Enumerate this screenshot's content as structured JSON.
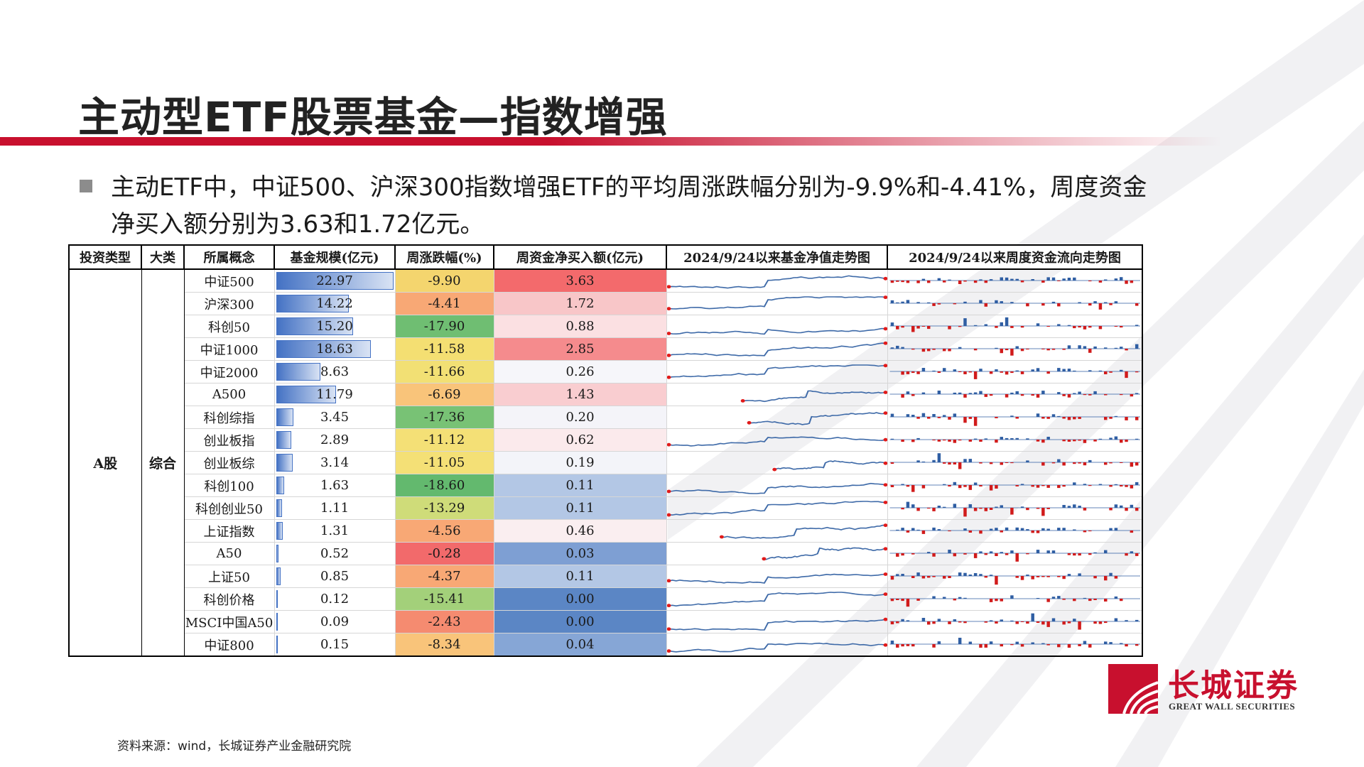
{
  "title": "主动型ETF股票基金—指数增强",
  "bullet": "主动ETF中，中证500、沪深300指数增强ETF的平均周涨跌幅分别为-9.9%和-4.41%，周度资金净买入额分别为3.63和1.72亿元。",
  "table": {
    "headers": [
      "投资类型",
      "大类",
      "所属概念",
      "基金规模(亿元)",
      "周涨跌幅(%)",
      "周资金净买入额(亿元)",
      "2024/9/24以来基金净值走势图",
      "2024/9/24以来周度资金流向走势图"
    ],
    "investment_type": "A股",
    "category": "综合",
    "rows": [
      {
        "concept": "中证500",
        "size": "22.97",
        "change": "-9.90",
        "flow": "3.63",
        "size_fraction": 1.0,
        "change_color": "#f4d56e",
        "flow_color": "#f36a6c"
      },
      {
        "concept": "沪深300",
        "size": "14.22",
        "change": "-4.41",
        "flow": "1.72",
        "size_fraction": 0.62,
        "change_color": "#f8a875",
        "flow_color": "#f8c6c8"
      },
      {
        "concept": "科创50",
        "size": "15.20",
        "change": "-17.90",
        "flow": "0.88",
        "size_fraction": 0.66,
        "change_color": "#6fbe72",
        "flow_color": "#fbe0e2"
      },
      {
        "concept": "中证1000",
        "size": "18.63",
        "change": "-11.58",
        "flow": "2.85",
        "size_fraction": 0.81,
        "change_color": "#f4df72",
        "flow_color": "#f58b8d"
      },
      {
        "concept": "中证2000",
        "size": "8.63",
        "change": "-11.66",
        "flow": "0.26",
        "size_fraction": 0.38,
        "change_color": "#f2e074",
        "flow_color": "#f6f6fa"
      },
      {
        "concept": "A500",
        "size": "11.79",
        "change": "-6.69",
        "flow": "1.43",
        "size_fraction": 0.51,
        "change_color": "#f9c47a",
        "flow_color": "#f9cdd0"
      },
      {
        "concept": "科创综指",
        "size": "3.45",
        "change": "-17.36",
        "flow": "0.20",
        "size_fraction": 0.15,
        "change_color": "#78c275",
        "flow_color": "#f4f4f9"
      },
      {
        "concept": "创业板指",
        "size": "2.89",
        "change": "-11.12",
        "flow": "0.62",
        "size_fraction": 0.13,
        "change_color": "#f4e076",
        "flow_color": "#fbeaec"
      },
      {
        "concept": "创业板综",
        "size": "3.14",
        "change": "-11.05",
        "flow": "0.19",
        "size_fraction": 0.14,
        "change_color": "#f4e076",
        "flow_color": "#f3f4f9"
      },
      {
        "concept": "科创100",
        "size": "1.63",
        "change": "-18.60",
        "flow": "0.11",
        "size_fraction": 0.07,
        "change_color": "#63b96e",
        "flow_color": "#b3c7e5"
      },
      {
        "concept": "科创创业50",
        "size": "1.11",
        "change": "-13.29",
        "flow": "0.11",
        "size_fraction": 0.05,
        "change_color": "#cfdc79",
        "flow_color": "#b3c7e5"
      },
      {
        "concept": "上证指数",
        "size": "1.31",
        "change": "-4.56",
        "flow": "0.46",
        "size_fraction": 0.06,
        "change_color": "#f8a875",
        "flow_color": "#faeef0"
      },
      {
        "concept": "A50",
        "size": "0.52",
        "change": "-0.28",
        "flow": "0.03",
        "size_fraction": 0.023,
        "change_color": "#f26a6b",
        "flow_color": "#7e9fd3"
      },
      {
        "concept": "上证50",
        "size": "0.85",
        "change": "-4.37",
        "flow": "0.11",
        "size_fraction": 0.037,
        "change_color": "#f8a875",
        "flow_color": "#b3c7e5"
      },
      {
        "concept": "科创价格",
        "size": "0.12",
        "change": "-15.41",
        "flow": "0.00",
        "size_fraction": 0.006,
        "change_color": "#a3d07a",
        "flow_color": "#5b86c5"
      },
      {
        "concept": "MSCI中国A50",
        "size": "0.09",
        "change": "-2.43",
        "flow": "0.00",
        "size_fraction": 0.004,
        "change_color": "#f58b70",
        "flow_color": "#5b86c5"
      },
      {
        "concept": "中证800",
        "size": "0.15",
        "change": "-8.34",
        "flow": "0.04",
        "size_fraction": 0.007,
        "change_color": "#f9c47a",
        "flow_color": "#86a6d6"
      }
    ]
  },
  "colors": {
    "accent_red": "#c8102e",
    "bar_blue": "#4472c4",
    "nav_line": "#3e6aa8",
    "nav_marker": "#e11a1a",
    "flow_positive": "#2f5ea3",
    "flow_negative": "#d11b1b"
  },
  "logo": {
    "cn": "长城证券",
    "en": "GREAT WALL SECURITIES"
  },
  "source": "资料来源：wind，长城证券产业金融研究院"
}
